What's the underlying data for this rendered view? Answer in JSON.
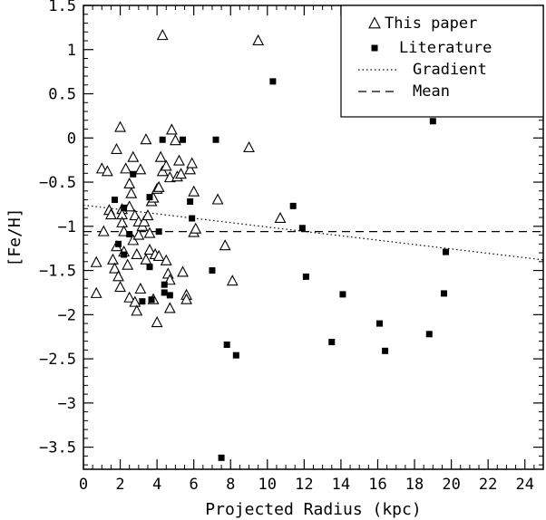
{
  "chart_data": {
    "type": "scatter",
    "title": "",
    "xlabel": "Projected Radius (kpc)",
    "ylabel": "[Fe/H]",
    "xlim": [
      0,
      25
    ],
    "ylim": [
      -3.75,
      1.5
    ],
    "x_ticks": [
      0,
      2,
      4,
      6,
      8,
      10,
      12,
      14,
      16,
      18,
      20,
      22,
      24
    ],
    "x_tick_labels": [
      "0",
      "2",
      "4",
      "6",
      "8",
      "10",
      "12",
      "14",
      "16",
      "18",
      "20",
      "22",
      "24"
    ],
    "y_ticks": [
      1.5,
      1,
      0.5,
      0,
      -0.5,
      -1,
      -1.5,
      -2,
      -2.5,
      -3,
      -3.5
    ],
    "y_tick_labels": [
      "1.5",
      "1",
      "0.5",
      "0",
      "−0.5",
      "−1",
      "−1.5",
      "−2",
      "−2.5",
      "−3",
      "−3.5"
    ],
    "legend_position": "top-right",
    "grid": false,
    "series": [
      {
        "name": "This paper",
        "marker": "open-triangle",
        "points": [
          [
            0.7,
            -1.41
          ],
          [
            0.7,
            -1.76
          ],
          [
            1.0,
            -0.35
          ],
          [
            1.1,
            -1.06
          ],
          [
            1.3,
            -0.38
          ],
          [
            1.4,
            -0.82
          ],
          [
            1.5,
            -0.87
          ],
          [
            1.6,
            -1.38
          ],
          [
            1.7,
            -1.48
          ],
          [
            1.8,
            -0.13
          ],
          [
            1.8,
            -1.23
          ],
          [
            1.9,
            -1.57
          ],
          [
            2.0,
            0.12
          ],
          [
            2.0,
            -1.69
          ],
          [
            2.1,
            -0.81
          ],
          [
            2.1,
            -0.87
          ],
          [
            2.1,
            -0.96
          ],
          [
            2.2,
            -1.06
          ],
          [
            2.2,
            -1.29
          ],
          [
            2.3,
            -0.35
          ],
          [
            2.4,
            -1.44
          ],
          [
            2.5,
            -0.52
          ],
          [
            2.5,
            -0.78
          ],
          [
            2.5,
            -1.81
          ],
          [
            2.6,
            -0.63
          ],
          [
            2.7,
            -0.22
          ],
          [
            2.7,
            -1.16
          ],
          [
            2.8,
            -0.88
          ],
          [
            2.8,
            -1.86
          ],
          [
            2.9,
            -1.32
          ],
          [
            2.9,
            -1.96
          ],
          [
            3.0,
            -0.95
          ],
          [
            3.0,
            -1.1
          ],
          [
            3.1,
            -0.36
          ],
          [
            3.1,
            -1.71
          ],
          [
            3.2,
            -1.0
          ],
          [
            3.3,
            -0.95
          ],
          [
            3.4,
            -0.02
          ],
          [
            3.4,
            -1.38
          ],
          [
            3.5,
            -0.88
          ],
          [
            3.6,
            -1.08
          ],
          [
            3.6,
            -1.27
          ],
          [
            3.7,
            -0.72
          ],
          [
            3.8,
            -0.68
          ],
          [
            3.8,
            -1.83
          ],
          [
            3.9,
            -1.32
          ],
          [
            4.0,
            -0.58
          ],
          [
            4.0,
            -2.09
          ],
          [
            4.1,
            -0.56
          ],
          [
            4.1,
            -1.34
          ],
          [
            4.2,
            -0.22
          ],
          [
            4.3,
            1.16
          ],
          [
            4.3,
            -0.38
          ],
          [
            4.5,
            -0.32
          ],
          [
            4.5,
            -1.39
          ],
          [
            4.6,
            -1.54
          ],
          [
            4.7,
            -0.45
          ],
          [
            4.7,
            -1.61
          ],
          [
            4.7,
            -1.93
          ],
          [
            4.8,
            0.09
          ],
          [
            5.0,
            -0.03
          ],
          [
            5.1,
            -0.44
          ],
          [
            5.2,
            -0.26
          ],
          [
            5.3,
            -0.41
          ],
          [
            5.4,
            -1.52
          ],
          [
            5.6,
            -1.78
          ],
          [
            5.6,
            -1.83
          ],
          [
            5.8,
            -0.36
          ],
          [
            5.9,
            -0.29
          ],
          [
            6.0,
            -0.61
          ],
          [
            6.0,
            -1.07
          ],
          [
            6.1,
            -1.03
          ],
          [
            7.3,
            -0.7
          ],
          [
            7.7,
            -1.22
          ],
          [
            8.1,
            -1.62
          ],
          [
            9.0,
            -0.11
          ],
          [
            9.5,
            1.1
          ],
          [
            10.7,
            -0.91
          ]
        ]
      },
      {
        "name": "Literature",
        "marker": "filled-square",
        "points": [
          [
            1.7,
            -0.7
          ],
          [
            1.9,
            -1.2
          ],
          [
            2.2,
            -0.79
          ],
          [
            2.2,
            -1.32
          ],
          [
            2.5,
            -1.09
          ],
          [
            2.7,
            -0.41
          ],
          [
            3.2,
            -1.85
          ],
          [
            3.6,
            -0.67
          ],
          [
            3.6,
            -1.46
          ],
          [
            3.7,
            -1.83
          ],
          [
            4.1,
            -1.06
          ],
          [
            4.3,
            -0.02
          ],
          [
            4.4,
            -1.66
          ],
          [
            4.4,
            -1.75
          ],
          [
            4.7,
            -1.78
          ],
          [
            5.4,
            -0.02
          ],
          [
            5.8,
            -0.72
          ],
          [
            5.9,
            -0.91
          ],
          [
            7.0,
            -1.5
          ],
          [
            7.2,
            -0.02
          ],
          [
            7.5,
            -3.62
          ],
          [
            7.8,
            -2.34
          ],
          [
            8.3,
            -2.46
          ],
          [
            10.3,
            0.64
          ],
          [
            11.4,
            -0.77
          ],
          [
            11.9,
            -1.02
          ],
          [
            12.1,
            -1.57
          ],
          [
            13.5,
            -2.31
          ],
          [
            14.1,
            -1.77
          ],
          [
            16.1,
            -2.1
          ],
          [
            16.4,
            -2.41
          ],
          [
            18.8,
            -2.22
          ],
          [
            19.0,
            0.19
          ],
          [
            19.6,
            -1.76
          ],
          [
            19.7,
            -1.29
          ]
        ]
      },
      {
        "name": "Gradient",
        "line": "dotted",
        "points": [
          [
            0,
            -0.76
          ],
          [
            25,
            -1.38
          ]
        ]
      },
      {
        "name": "Mean",
        "line": "dashed",
        "points": [
          [
            0,
            -1.06
          ],
          [
            25,
            -1.06
          ]
        ]
      }
    ]
  }
}
